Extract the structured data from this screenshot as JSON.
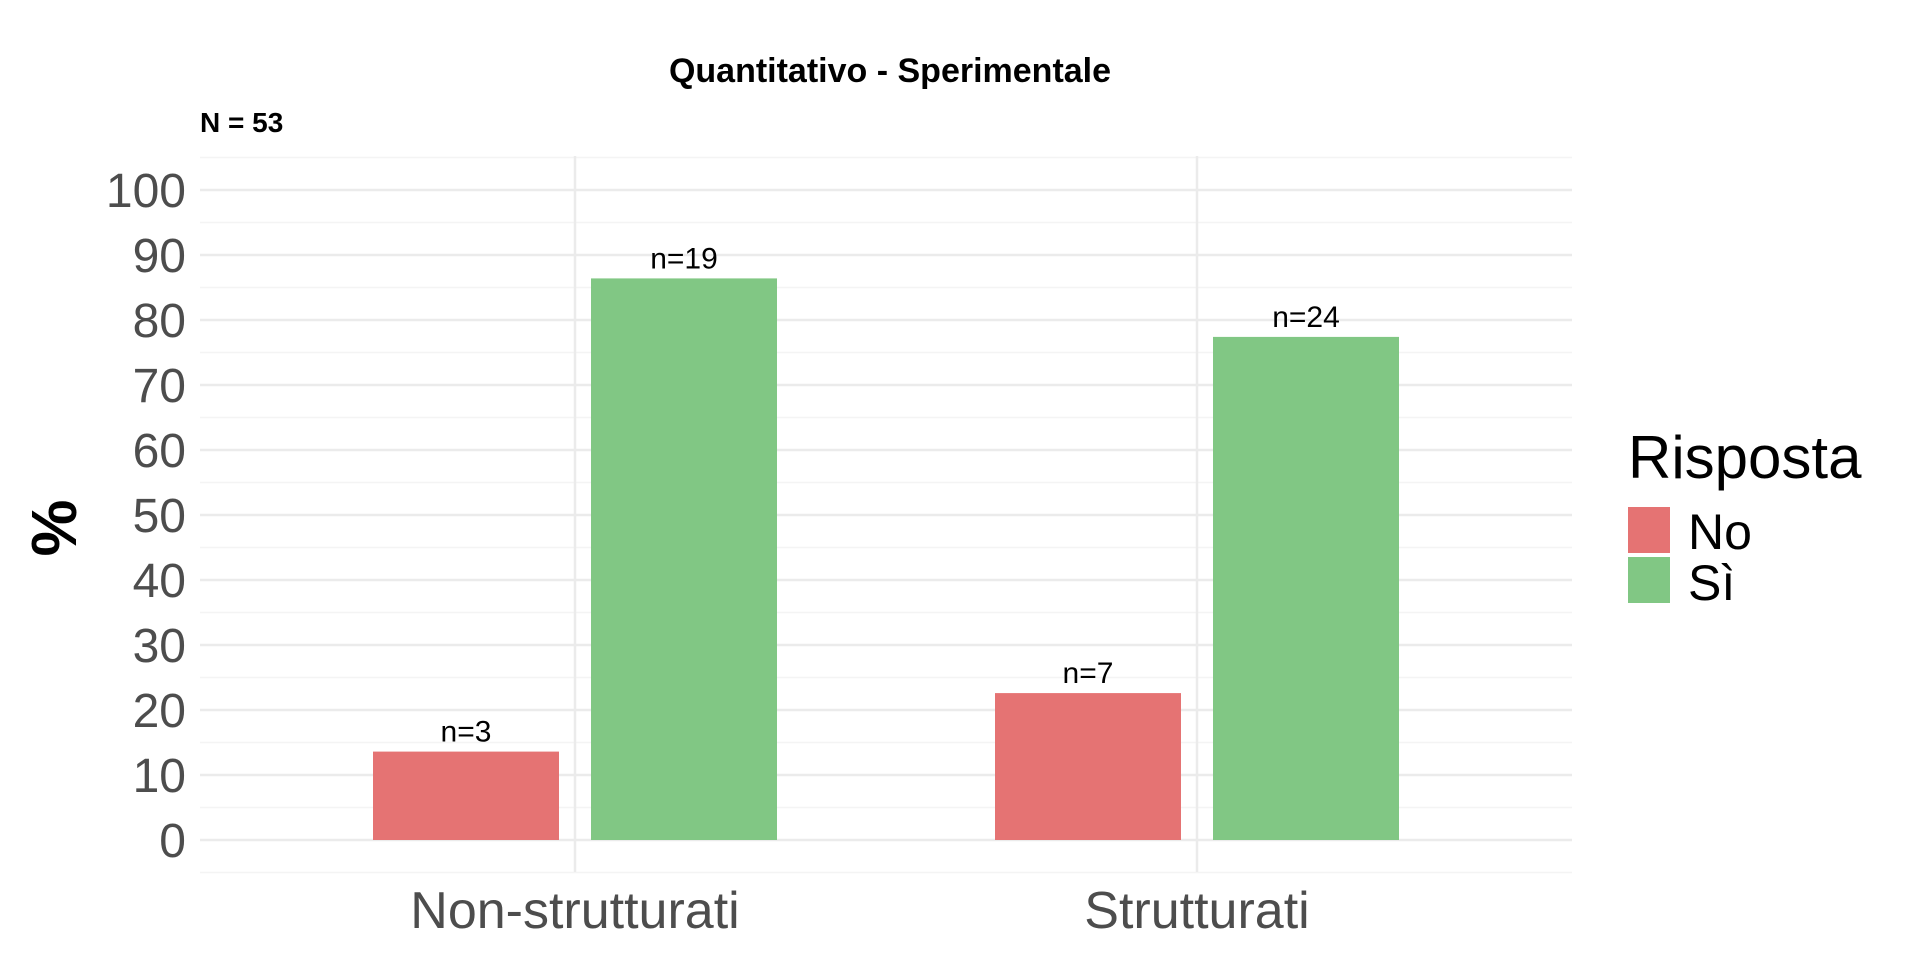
{
  "chart_data": {
    "type": "bar",
    "title": "Quantitativo - Sperimentale",
    "subtitle": "N = 53",
    "xlabel": "",
    "ylabel": "%",
    "ylim": [
      -5,
      105
    ],
    "yticks": [
      0,
      10,
      20,
      30,
      40,
      50,
      60,
      70,
      80,
      90,
      100
    ],
    "categories": [
      "Non-strutturati",
      "Strutturati"
    ],
    "series": [
      {
        "name": "No",
        "color": "#E57373",
        "values": [
          13.6,
          22.6
        ],
        "labels": [
          "n=3",
          "n=7"
        ]
      },
      {
        "name": "Sì",
        "color": "#81C784",
        "values": [
          86.4,
          77.4
        ],
        "labels": [
          "n=19",
          "n=24"
        ]
      }
    ],
    "legend": {
      "title": "Risposta",
      "position": "right"
    },
    "grid": true
  }
}
